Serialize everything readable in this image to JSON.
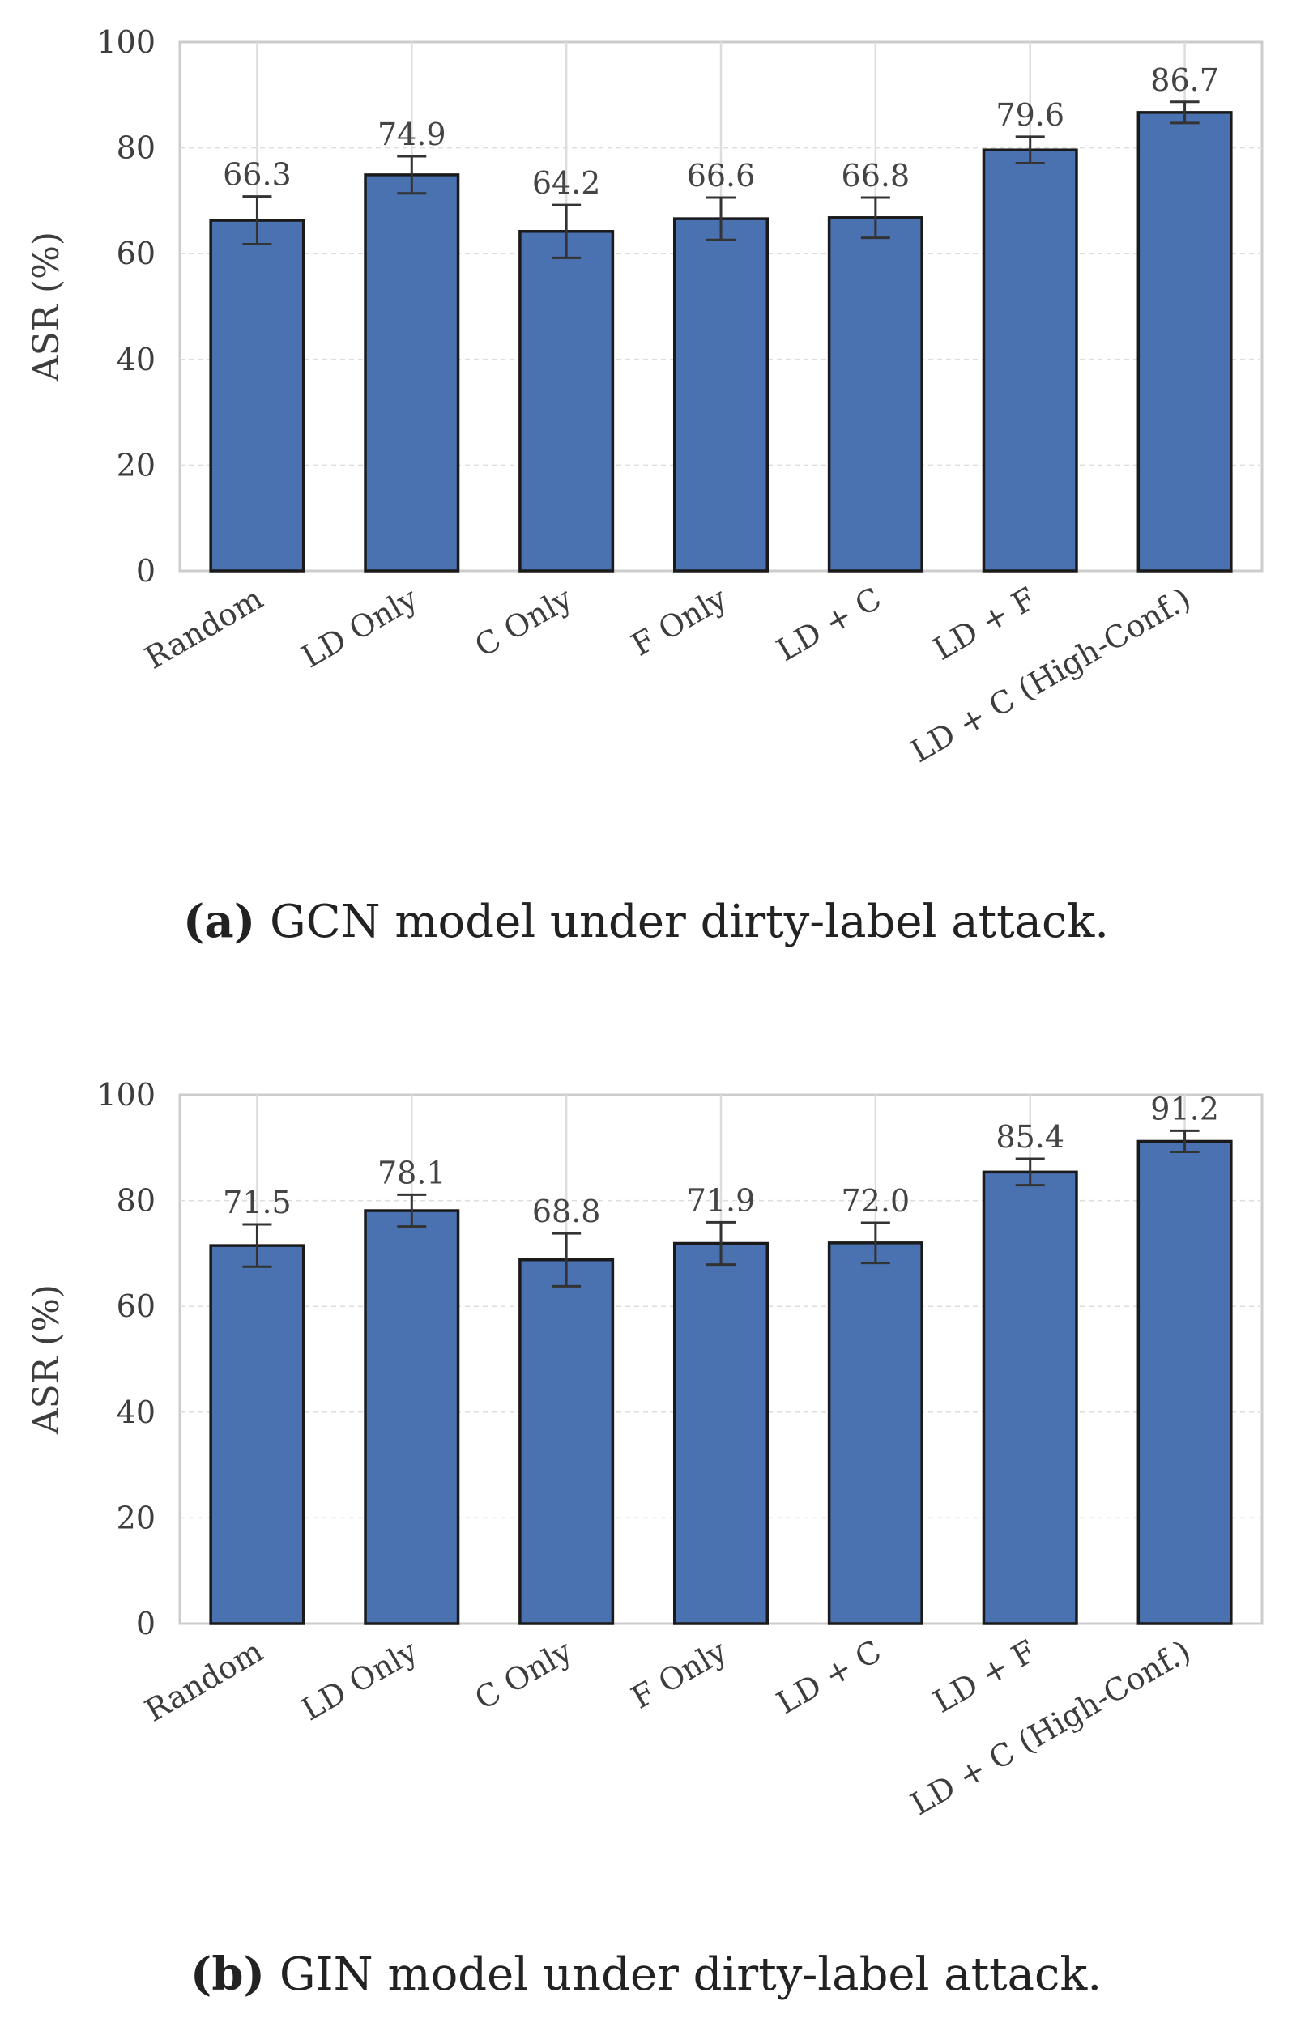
{
  "chart_data": [
    {
      "type": "bar",
      "ylabel": "ASR (%)",
      "ylim": [
        0,
        100
      ],
      "yticks": [
        0,
        20,
        40,
        60,
        80,
        100
      ],
      "grid": true,
      "bar_color": "#4a72b0",
      "categories": [
        "Random",
        "LD Only",
        "C Only",
        "F Only",
        "LD + C",
        "LD + F",
        "LD + C (High-Conf.)"
      ],
      "values": [
        66.3,
        74.9,
        64.2,
        66.6,
        66.8,
        79.6,
        86.7
      ],
      "value_labels": [
        "66.3",
        "74.9",
        "64.2",
        "66.6",
        "66.8",
        "79.6",
        "86.7"
      ],
      "errors": [
        4.5,
        3.5,
        5.0,
        4.0,
        3.8,
        2.5,
        2.0
      ],
      "caption_tag": "(a)",
      "caption_text": "GCN model under dirty-label attack."
    },
    {
      "type": "bar",
      "ylabel": "ASR (%)",
      "ylim": [
        0,
        100
      ],
      "yticks": [
        0,
        20,
        40,
        60,
        80,
        100
      ],
      "grid": true,
      "bar_color": "#4a72b0",
      "categories": [
        "Random",
        "LD Only",
        "C Only",
        "F Only",
        "LD + C",
        "LD + F",
        "LD + C (High-Conf.)"
      ],
      "values": [
        71.5,
        78.1,
        68.8,
        71.9,
        72.0,
        85.4,
        91.2
      ],
      "value_labels": [
        "71.5",
        "78.1",
        "68.8",
        "71.9",
        "72.0",
        "85.4",
        "91.2"
      ],
      "errors": [
        4.0,
        3.0,
        5.0,
        4.0,
        3.8,
        2.5,
        2.0
      ],
      "caption_tag": "(b)",
      "caption_text": "GIN model under dirty-label attack."
    }
  ]
}
